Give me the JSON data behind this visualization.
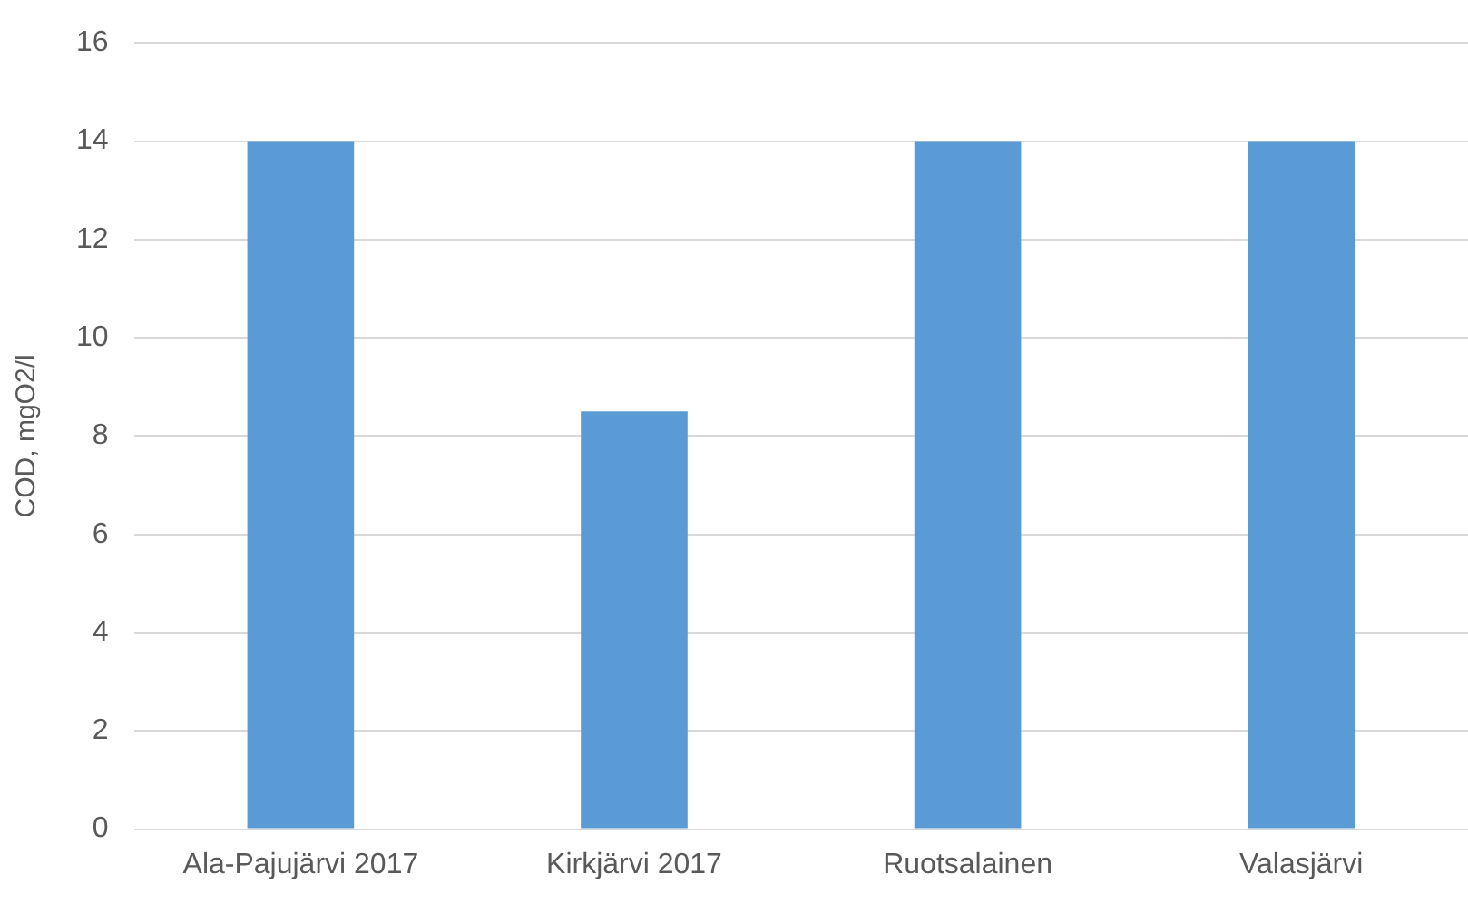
{
  "chart_data": {
    "type": "bar",
    "ylabel": "COD, mgO2/l",
    "categories": [
      "Ala-Pajujärvi 2017",
      "Kirkjärvi 2017",
      "Ruotsalainen",
      "Valasjärvi"
    ],
    "values": [
      14,
      8.5,
      14,
      14
    ],
    "color": "#5b9bd5",
    "ylim": [
      0,
      16
    ],
    "yticks": [
      0,
      2,
      4,
      6,
      8,
      10,
      12,
      14,
      16
    ],
    "grid": "y"
  }
}
